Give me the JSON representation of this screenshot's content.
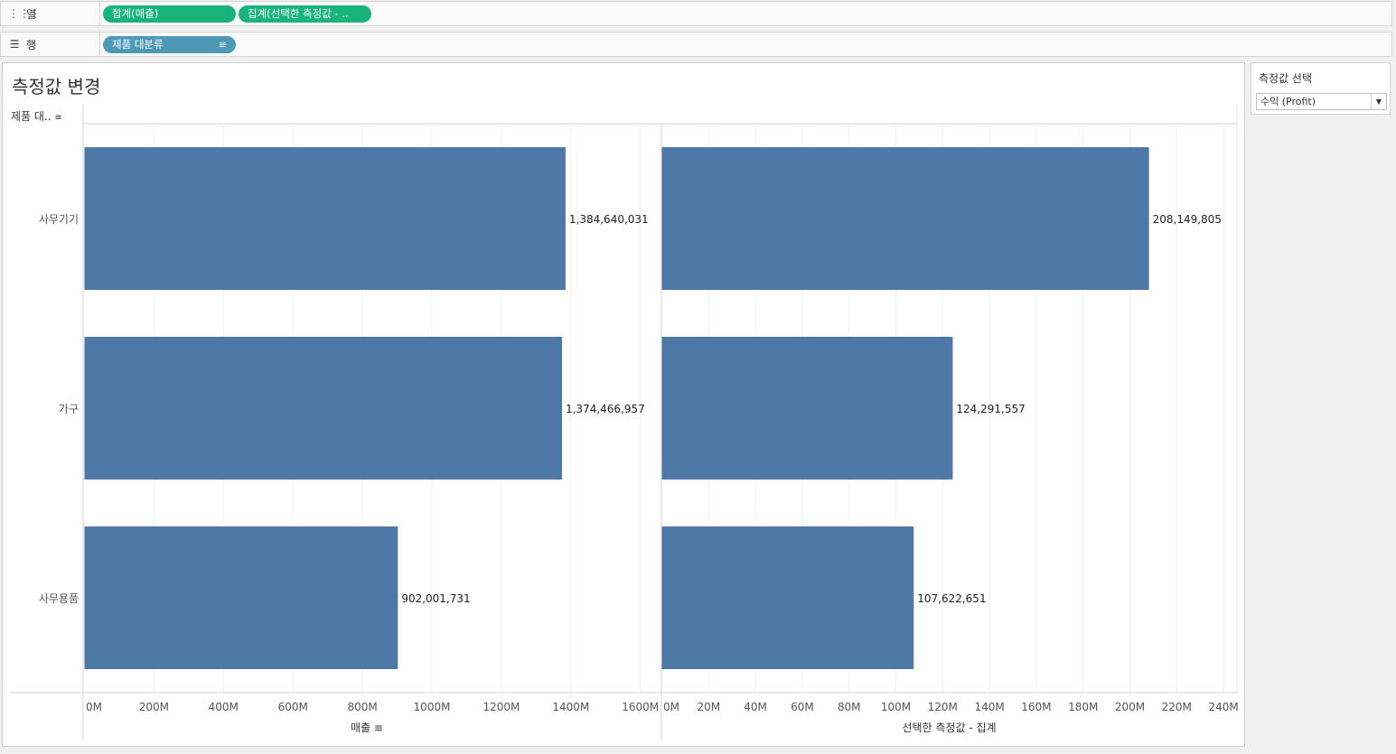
{
  "shelves": {
    "columns": {
      "label": "열",
      "icon": "columns-icon",
      "pills": [
        "합계(매출)",
        "집계(선택한 측정값 - .."
      ]
    },
    "rows": {
      "label": "행",
      "icon": "rows-icon",
      "pills": [
        "제품 대분류"
      ]
    }
  },
  "sheet": {
    "title": "측정값 변경",
    "row_header": "제품 대.."
  },
  "parameter": {
    "title": "측정값 선택",
    "value": "수익 (Profit)"
  },
  "colors": {
    "bar": "#4e79a7",
    "pill_green": "#19b47c",
    "pill_blue": "#4e99b8"
  },
  "chart_data": {
    "type": "bar",
    "orientation": "horizontal",
    "categories": [
      "사무기기",
      "가구",
      "사무용품"
    ],
    "panes": [
      {
        "name": "매출",
        "values": [
          1384640031,
          1374466957,
          902001731
        ],
        "labels": [
          "1,384,640,031",
          "1,374,466,957",
          "902,001,731"
        ],
        "ticks": [
          "0M",
          "200M",
          "400M",
          "600M",
          "800M",
          "1000M",
          "1200M",
          "1400M",
          "1600M"
        ],
        "xlim": [
          0,
          1600000000
        ],
        "axis_title": "매출",
        "sorted": true
      },
      {
        "name": "선택한 측정값 - 집계",
        "values": [
          208149805,
          124291557,
          107622651
        ],
        "labels": [
          "208,149,805",
          "124,291,557",
          "107,622,651"
        ],
        "ticks": [
          "0M",
          "20M",
          "40M",
          "60M",
          "80M",
          "100M",
          "120M",
          "140M",
          "160M",
          "180M",
          "200M",
          "220M",
          "240M"
        ],
        "xlim": [
          0,
          240000000
        ],
        "axis_title": "선택한 측정값 - 집계",
        "sorted": false
      }
    ],
    "grid": true
  }
}
